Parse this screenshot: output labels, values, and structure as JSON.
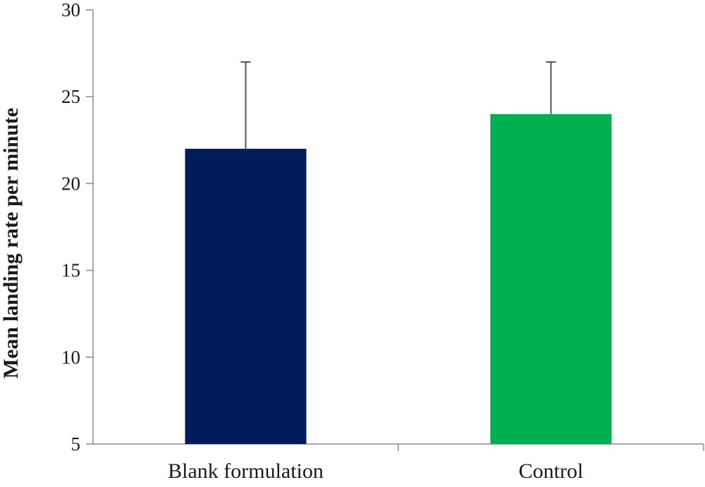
{
  "chart_data": {
    "type": "bar",
    "title": "",
    "xlabel": "",
    "ylabel": "Mean landing rate per minute",
    "categories": [
      "Blank formulation",
      "Control"
    ],
    "values": [
      22,
      24
    ],
    "error_upper": [
      27,
      27
    ],
    "ylim": [
      5,
      30
    ],
    "yticks": [
      "5",
      "10",
      "15",
      "20",
      "25",
      "30"
    ],
    "grid": false,
    "legend": "none",
    "colors": [
      "#001c5b",
      "#00b050"
    ],
    "axis_color": "#8c8c8c"
  }
}
